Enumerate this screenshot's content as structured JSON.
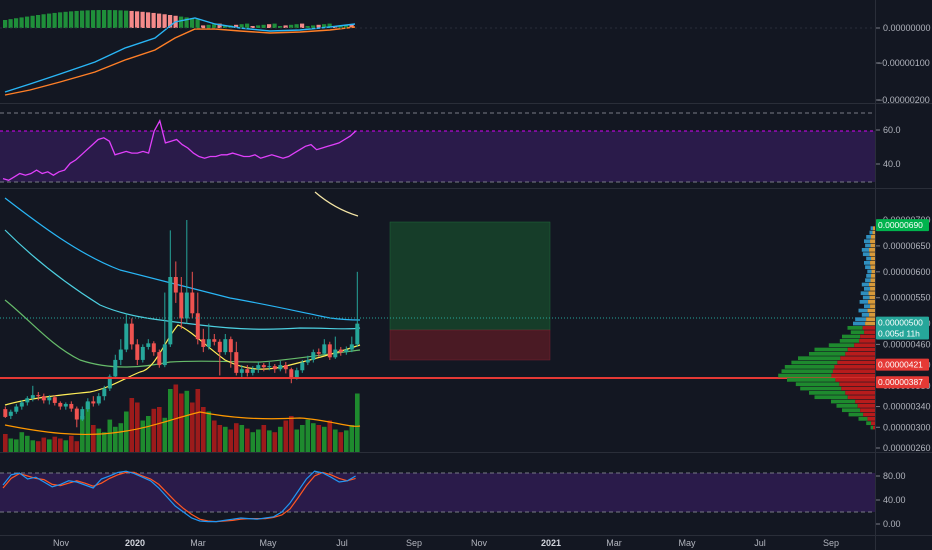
{
  "colors": {
    "background": "#131722",
    "up": "#26a69a",
    "down": "#ef5350",
    "vol_up": "#1e8a2e",
    "vol_down": "#9c1b1b",
    "pane_fill": "#2a1b4a",
    "rsi_line": "#e040fb",
    "k_line": "#2196f3",
    "d_line": "#ff5722",
    "accent_green": "#00b34d",
    "accent_red": "#e53935",
    "accent_teal": "#26a69a"
  },
  "macd_axis": [
    "0.00000000",
    "−0.00000100",
    "−0.00000200"
  ],
  "rsi_axis": [
    "60.0",
    "40.0"
  ],
  "rsi_series": [
    0.32,
    0.31,
    0.33,
    0.35,
    0.34,
    0.35,
    0.37,
    0.35,
    0.36,
    0.34,
    0.36,
    0.37,
    0.41,
    0.43,
    0.46,
    0.49,
    0.52,
    0.55,
    0.56,
    0.54,
    0.46,
    0.47,
    0.48,
    0.47,
    0.47,
    0.48,
    0.47,
    0.6,
    0.66,
    0.53,
    0.54,
    0.55,
    0.52,
    0.5,
    0.47,
    0.45,
    0.44,
    0.45,
    0.45,
    0.46,
    0.46,
    0.47,
    0.46,
    0.45,
    0.45,
    0.46,
    0.44,
    0.45,
    0.46,
    0.45,
    0.44,
    0.45,
    0.47,
    0.49,
    0.51,
    0.52,
    0.49,
    0.5,
    0.51,
    0.52,
    0.53,
    0.55,
    0.57,
    0.6
  ],
  "price_axis": [
    "0.00000700",
    "0.00000650",
    "0.00000600",
    "0.00000550",
    "0.00000500",
    "0.00000460",
    "0.00000420",
    "0.00000380",
    "0.00000340",
    "0.00000300",
    "0.00000260"
  ],
  "price_tags": [
    {
      "label": "0.00000690",
      "color": "#00b34d",
      "price": 690
    },
    {
      "label": "0.00000500",
      "color": "#26a69a",
      "price": 502
    },
    {
      "label": "0.005d 11h",
      "color": "#26a69a",
      "price": 481
    },
    {
      "label": "0.00000421",
      "color": "#e53935",
      "price": 421
    },
    {
      "label": "0.00000387",
      "color": "#e53935",
      "price": 387
    }
  ],
  "candles": [
    [
      335,
      320,
      340,
      318
    ],
    [
      322,
      330,
      334,
      316
    ],
    [
      330,
      340,
      345,
      326
    ],
    [
      340,
      348,
      352,
      334
    ],
    [
      348,
      356,
      360,
      342
    ],
    [
      356,
      362,
      380,
      350
    ],
    [
      362,
      360,
      368,
      352
    ],
    [
      360,
      352,
      365,
      346
    ],
    [
      352,
      358,
      362,
      344
    ],
    [
      358,
      347,
      362,
      342
    ],
    [
      347,
      340,
      350,
      334
    ],
    [
      340,
      345,
      348,
      334
    ],
    [
      345,
      336,
      350,
      330
    ],
    [
      336,
      315,
      340,
      300
    ],
    [
      315,
      335,
      340,
      312
    ],
    [
      335,
      350,
      356,
      330
    ],
    [
      350,
      346,
      360,
      340
    ],
    [
      346,
      360,
      366,
      342
    ],
    [
      360,
      375,
      380,
      352
    ],
    [
      375,
      398,
      402,
      370
    ],
    [
      398,
      430,
      440,
      395
    ],
    [
      430,
      450,
      470,
      420
    ],
    [
      450,
      500,
      520,
      445
    ],
    [
      500,
      460,
      510,
      450
    ],
    [
      460,
      430,
      470,
      420
    ],
    [
      430,
      455,
      460,
      425
    ],
    [
      455,
      462,
      470,
      450
    ],
    [
      462,
      445,
      466,
      438
    ],
    [
      445,
      420,
      450,
      415
    ],
    [
      420,
      460,
      560,
      416
    ],
    [
      460,
      590,
      680,
      455
    ],
    [
      590,
      560,
      620,
      540
    ],
    [
      560,
      510,
      590,
      490
    ],
    [
      510,
      560,
      700,
      500
    ],
    [
      560,
      520,
      600,
      510
    ],
    [
      520,
      470,
      560,
      460
    ],
    [
      470,
      455,
      490,
      445
    ],
    [
      455,
      470,
      500,
      450
    ],
    [
      470,
      465,
      480,
      458
    ],
    [
      465,
      445,
      470,
      400
    ],
    [
      445,
      470,
      480,
      440
    ],
    [
      470,
      445,
      475,
      415
    ],
    [
      445,
      405,
      465,
      400
    ],
    [
      405,
      412,
      420,
      396
    ],
    [
      412,
      405,
      420,
      398
    ],
    [
      405,
      412,
      418,
      400
    ],
    [
      412,
      420,
      426,
      405
    ],
    [
      420,
      416,
      424,
      408
    ],
    [
      416,
      418,
      426,
      410
    ],
    [
      418,
      412,
      422,
      405
    ],
    [
      412,
      420,
      428,
      408
    ],
    [
      420,
      412,
      426,
      404
    ],
    [
      412,
      395,
      415,
      385
    ],
    [
      395,
      410,
      415,
      392
    ],
    [
      410,
      425,
      430,
      405
    ],
    [
      425,
      430,
      438,
      420
    ],
    [
      430,
      445,
      450,
      425
    ],
    [
      445,
      442,
      452,
      436
    ],
    [
      442,
      460,
      470,
      440
    ],
    [
      460,
      435,
      465,
      430
    ],
    [
      435,
      450,
      475,
      432
    ],
    [
      450,
      445,
      455,
      438
    ],
    [
      445,
      450,
      456,
      440
    ],
    [
      450,
      460,
      475,
      445
    ],
    [
      460,
      500,
      600,
      455
    ]
  ],
  "volumes": [
    0.2,
    0.15,
    0.14,
    0.22,
    0.18,
    0.13,
    0.12,
    0.16,
    0.14,
    0.17,
    0.15,
    0.13,
    0.18,
    0.12,
    0.4,
    0.55,
    0.3,
    0.26,
    0.22,
    0.36,
    0.28,
    0.32,
    0.45,
    0.6,
    0.55,
    0.35,
    0.4,
    0.48,
    0.5,
    0.38,
    0.7,
    0.75,
    0.65,
    0.68,
    0.55,
    0.7,
    0.5,
    0.45,
    0.35,
    0.3,
    0.28,
    0.25,
    0.32,
    0.3,
    0.26,
    0.22,
    0.25,
    0.3,
    0.24,
    0.22,
    0.28,
    0.35,
    0.4,
    0.25,
    0.3,
    0.36,
    0.32,
    0.3,
    0.28,
    0.35,
    0.25,
    0.22,
    0.24,
    0.3,
    0.65
  ],
  "volume_profile": [
    0.0,
    0.04,
    0.05,
    0.08,
    0.1,
    0.09,
    0.12,
    0.11,
    0.08,
    0.1,
    0.09,
    0.07,
    0.08,
    0.09,
    0.12,
    0.1,
    0.13,
    0.11,
    0.14,
    0.1,
    0.15,
    0.12,
    0.18,
    0.2,
    0.25,
    0.22,
    0.3,
    0.32,
    0.42,
    0.55,
    0.6,
    0.7,
    0.76,
    0.82,
    0.85,
    0.88,
    0.8,
    0.72,
    0.68,
    0.6,
    0.55,
    0.4,
    0.35,
    0.3,
    0.24,
    0.15,
    0.08,
    0.04
  ],
  "stoch_axis": [
    "80.00",
    "40.00",
    "0.00"
  ],
  "stoch_k": [
    65,
    82,
    85,
    75,
    78,
    70,
    62,
    66,
    72,
    70,
    65,
    60,
    75,
    80,
    86,
    88,
    84,
    78,
    72,
    60,
    45,
    30,
    20,
    10,
    5,
    4,
    4,
    6,
    8,
    10,
    9,
    8,
    10,
    12,
    20,
    35,
    55,
    75,
    88,
    85,
    78,
    70,
    72,
    80
  ],
  "stoch_d": [
    60,
    76,
    84,
    80,
    76,
    74,
    66,
    64,
    68,
    72,
    68,
    63,
    68,
    76,
    82,
    86,
    86,
    80,
    75,
    66,
    52,
    38,
    26,
    16,
    8,
    5,
    4,
    5,
    6,
    8,
    9,
    9,
    9,
    11,
    15,
    25,
    44,
    64,
    80,
    86,
    82,
    76,
    72,
    76
  ],
  "time_axis": [
    "Nov",
    "2020",
    "Mar",
    "May",
    "Jul",
    "Sep",
    "Nov",
    "2021",
    "Mar",
    "May",
    "Jul",
    "Sep"
  ]
}
